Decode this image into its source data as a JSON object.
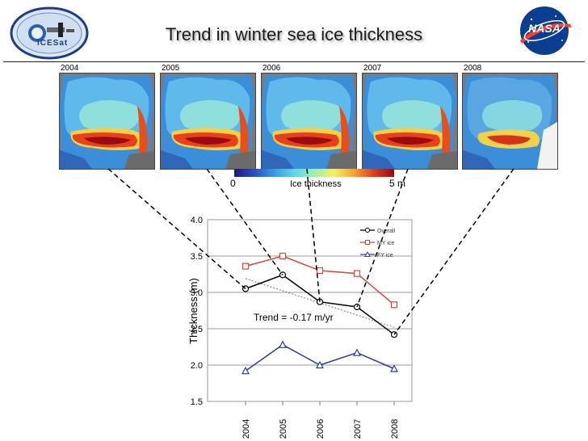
{
  "title": "Trend in winter sea ice thickness",
  "logos": {
    "left": "ICESat",
    "right": "NASA"
  },
  "maps": [
    {
      "year": "2004"
    },
    {
      "year": "2005"
    },
    {
      "year": "2006"
    },
    {
      "year": "2007"
    },
    {
      "year": "2008"
    }
  ],
  "colorbar": {
    "min_label": "0",
    "max_label": "5 m",
    "label": "Ice thickness"
  },
  "chart_data": {
    "type": "line",
    "x": [
      2004,
      2005,
      2006,
      2007,
      2008
    ],
    "ylabel": "Thickness (m)",
    "xlabel": "",
    "ylim": [
      1.5,
      4.0
    ],
    "yticks": [
      "1.5",
      "2.0",
      "2.5",
      "3.0",
      "3.5",
      "4.0"
    ],
    "xticks": [
      "2004",
      "2005",
      "2006",
      "2007",
      "2008"
    ],
    "series": [
      {
        "name": "Overall",
        "color": "#000000",
        "marker": "circle",
        "values": [
          3.05,
          3.24,
          2.87,
          2.8,
          2.42
        ]
      },
      {
        "name": "MY ice",
        "color": "#d0463a",
        "marker": "square",
        "values": [
          3.36,
          3.5,
          3.3,
          3.26,
          2.83
        ]
      },
      {
        "name": "FY ice",
        "color": "#2a3d9a",
        "marker": "triangle",
        "values": [
          1.92,
          2.28,
          2.0,
          2.17,
          1.95
        ]
      }
    ],
    "trendline": {
      "y_start": 3.19,
      "y_end": 2.52
    },
    "annotation": "Trend = -0.17 m/yr",
    "grid": true,
    "legend_position": "top-right"
  }
}
